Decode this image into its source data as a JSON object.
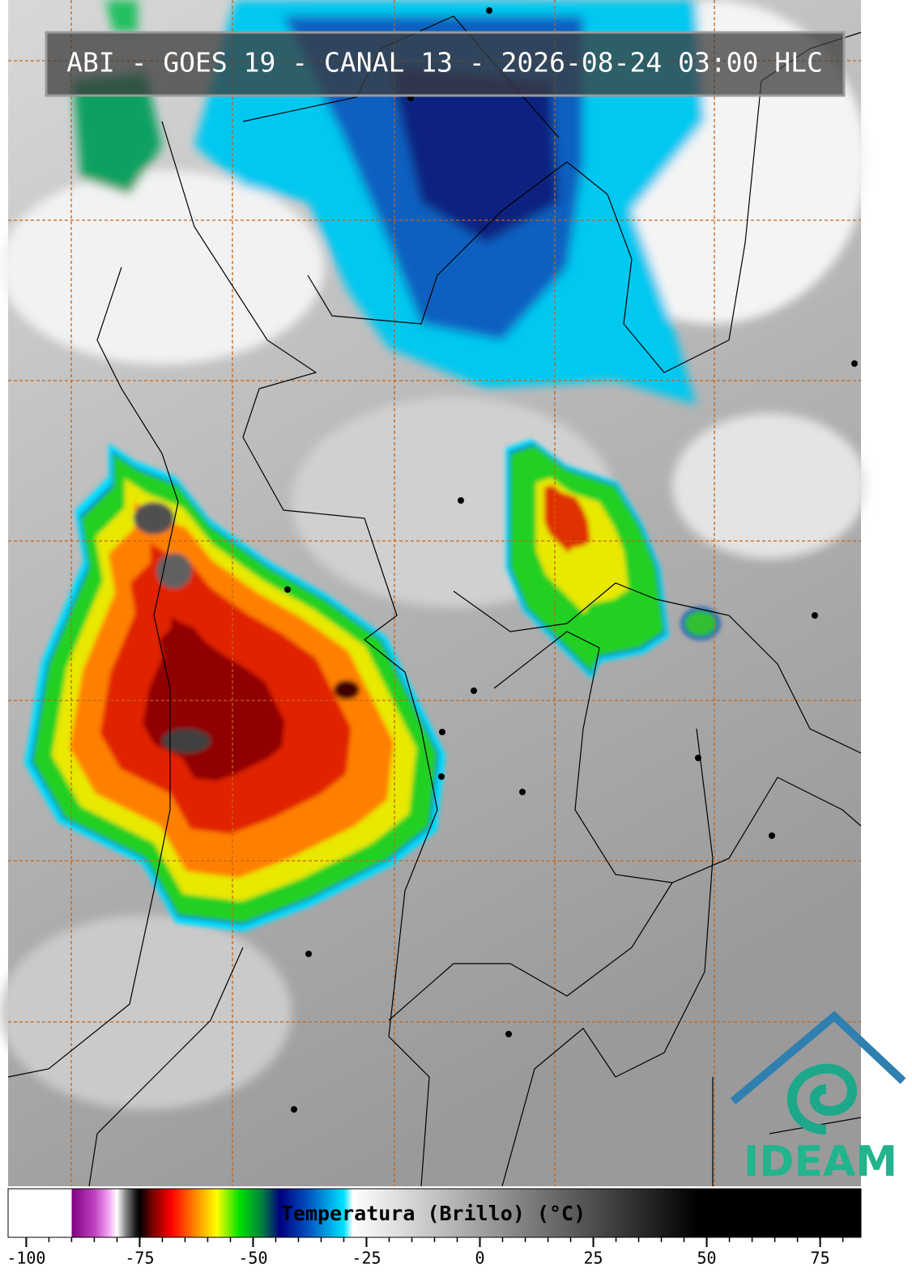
{
  "header": {
    "title": "ABI - GOES 19 - CANAL 13 - 2026-08-24 03:00 HLC"
  },
  "logo": {
    "text": "IDEAM"
  },
  "colorbar": {
    "label": "Temperatura (Brillo) (°C)",
    "lim": [
      -104,
      84
    ],
    "ticks": [
      -100,
      -75,
      -50,
      -25,
      0,
      25,
      50,
      75
    ],
    "minor_step": 5,
    "stops": [
      {
        "value": -104,
        "color": "#ffffff"
      },
      {
        "value": -90,
        "color": "#ffffff"
      },
      {
        "value": -90,
        "color": "#800080"
      },
      {
        "value": -85,
        "color": "#c040c0"
      },
      {
        "value": -82,
        "color": "#f0a0f0"
      },
      {
        "value": -80,
        "color": "#ffffff"
      },
      {
        "value": -78,
        "color": "#808080"
      },
      {
        "value": -76,
        "color": "#202020"
      },
      {
        "value": -75,
        "color": "#000000"
      },
      {
        "value": -72,
        "color": "#800000"
      },
      {
        "value": -68,
        "color": "#ff0000"
      },
      {
        "value": -63,
        "color": "#ff8000"
      },
      {
        "value": -58,
        "color": "#ffff00"
      },
      {
        "value": -53,
        "color": "#00e000"
      },
      {
        "value": -48,
        "color": "#008040"
      },
      {
        "value": -44,
        "color": "#000080"
      },
      {
        "value": -38,
        "color": "#0050c0"
      },
      {
        "value": -30,
        "color": "#00e0ff"
      },
      {
        "value": -28,
        "color": "#ffffff"
      },
      {
        "value": 48,
        "color": "#000000"
      },
      {
        "value": 84,
        "color": "#000000"
      }
    ]
  }
}
